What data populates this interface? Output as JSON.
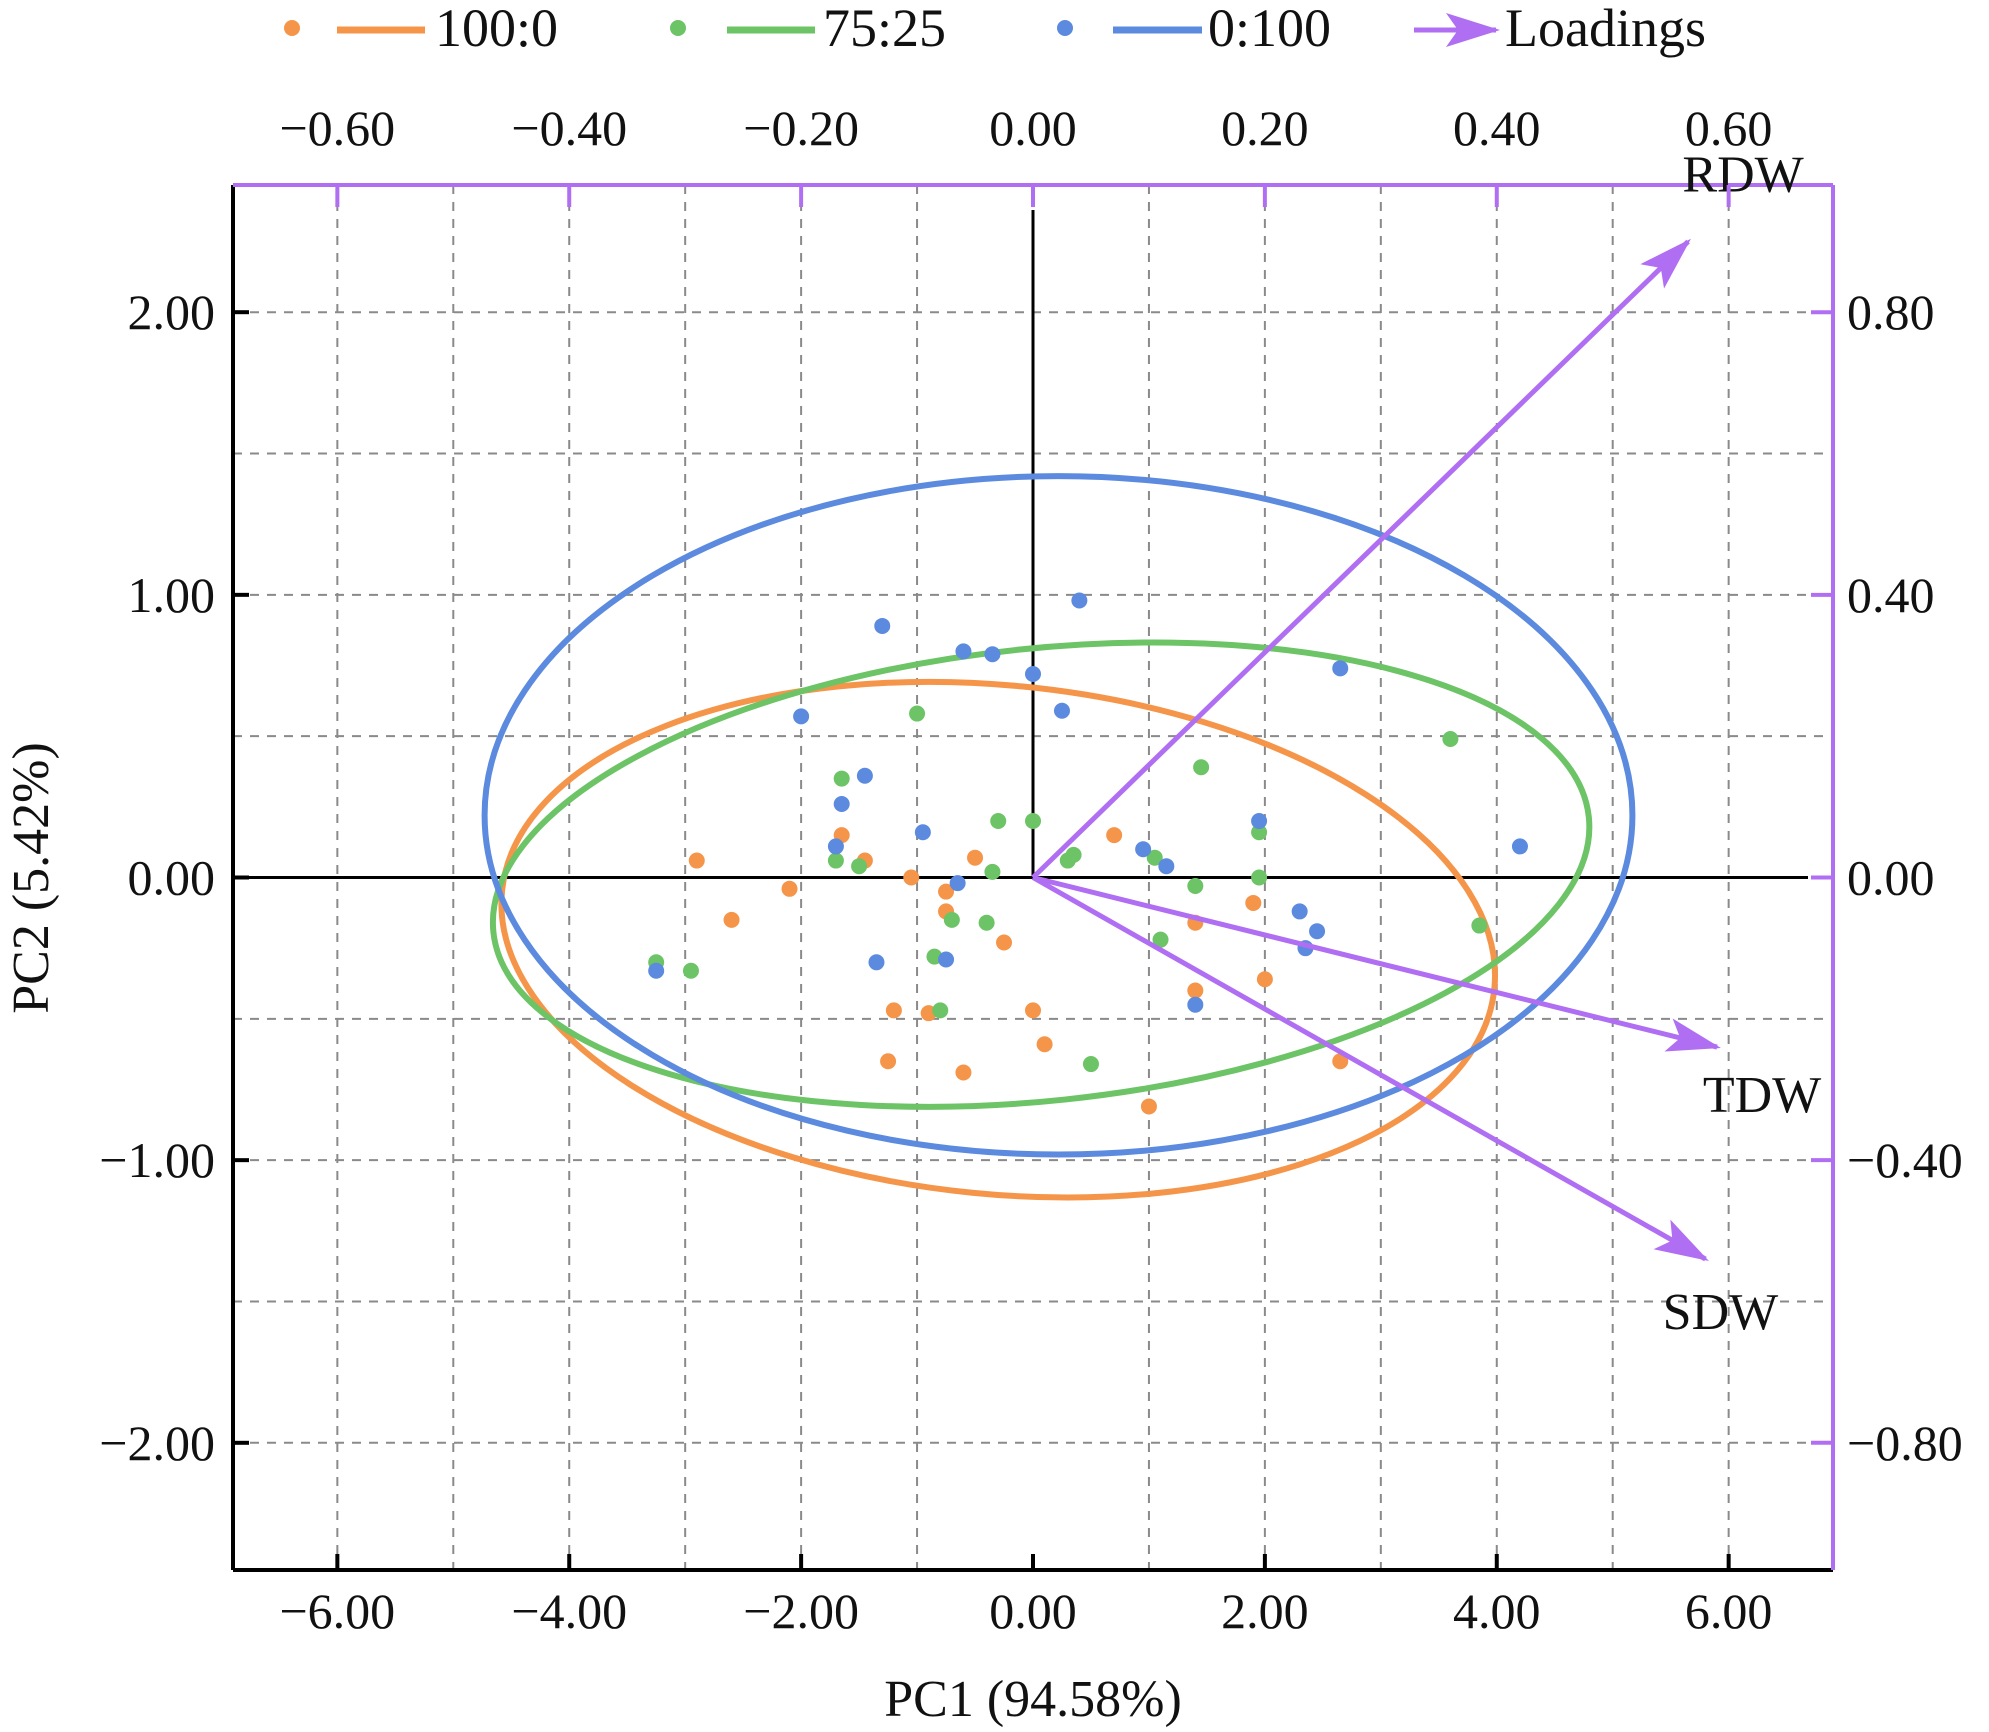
{
  "chart_data": {
    "type": "scatter",
    "title": "",
    "xlabel": "PC1 (94.58%)",
    "ylabel": "PC2 (5.42%)",
    "xlim": [
      -6.9,
      6.9
    ],
    "ylim": [
      -2.45,
      2.45
    ],
    "x_ticks": [
      "−6.00",
      "−4.00",
      "−2.00",
      "0.00",
      "2.00",
      "4.00",
      "6.00"
    ],
    "y_ticks": [
      "2.00",
      "1.00",
      "0.00",
      "−1.00",
      "−2.00"
    ],
    "top_axis": {
      "ticks": [
        "−0.60",
        "−0.40",
        "−0.20",
        "0.00",
        "0.20",
        "0.40",
        "0.60"
      ],
      "range": [
        -0.69,
        0.69
      ]
    },
    "right_axis": {
      "ticks": [
        "0.80",
        "0.40",
        "0.00",
        "−0.40",
        "−0.80"
      ],
      "range": [
        -0.98,
        0.98
      ]
    },
    "grid": true,
    "legend_position": "top",
    "legend": {
      "series_a": "100:0",
      "series_b": "75:25",
      "series_c": "0:100",
      "loadings": "Loadings"
    },
    "series": [
      {
        "name": "100:0",
        "color": "#F5954A",
        "points": [
          [
            -2.9,
            0.06
          ],
          [
            -2.6,
            -0.15
          ],
          [
            -2.1,
            -0.04
          ],
          [
            -1.65,
            0.15
          ],
          [
            -1.45,
            0.06
          ],
          [
            -1.05,
            0.0
          ],
          [
            -0.75,
            -0.05
          ],
          [
            -0.75,
            -0.12
          ],
          [
            -0.5,
            0.07
          ],
          [
            -0.25,
            -0.23
          ],
          [
            -1.2,
            -0.47
          ],
          [
            -0.9,
            -0.48
          ],
          [
            -1.25,
            -0.65
          ],
          [
            -0.6,
            -0.69
          ],
          [
            0.0,
            -0.47
          ],
          [
            0.1,
            -0.59
          ],
          [
            0.7,
            0.15
          ],
          [
            1.4,
            -0.16
          ],
          [
            1.4,
            -0.4
          ],
          [
            1.9,
            -0.09
          ],
          [
            2.0,
            -0.36
          ],
          [
            2.65,
            -0.65
          ],
          [
            1.0,
            -0.81
          ]
        ]
      },
      {
        "name": "75:25",
        "color": "#6CC466",
        "points": [
          [
            -3.25,
            -0.3
          ],
          [
            -2.95,
            -0.33
          ],
          [
            -1.7,
            0.06
          ],
          [
            -1.65,
            0.35
          ],
          [
            -1.5,
            0.04
          ],
          [
            -1.0,
            0.58
          ],
          [
            -0.85,
            -0.28
          ],
          [
            -0.8,
            -0.47
          ],
          [
            -0.7,
            -0.15
          ],
          [
            -0.4,
            -0.16
          ],
          [
            -0.35,
            0.02
          ],
          [
            -0.3,
            0.2
          ],
          [
            0.0,
            0.2
          ],
          [
            0.3,
            0.06
          ],
          [
            0.35,
            0.08
          ],
          [
            0.5,
            -0.66
          ],
          [
            1.05,
            0.07
          ],
          [
            1.1,
            -0.22
          ],
          [
            1.4,
            -0.03
          ],
          [
            1.45,
            0.39
          ],
          [
            1.95,
            0.16
          ],
          [
            1.95,
            0.0
          ],
          [
            3.6,
            0.49
          ],
          [
            3.85,
            -0.17
          ]
        ]
      },
      {
        "name": "0:100",
        "color": "#5B8ADE",
        "points": [
          [
            -3.25,
            -0.33
          ],
          [
            -2.0,
            0.57
          ],
          [
            -1.7,
            0.11
          ],
          [
            -1.65,
            0.26
          ],
          [
            -1.45,
            0.36
          ],
          [
            -1.35,
            -0.3
          ],
          [
            -1.3,
            0.89
          ],
          [
            -0.95,
            0.16
          ],
          [
            -0.75,
            -0.29
          ],
          [
            -0.65,
            -0.02
          ],
          [
            -0.6,
            0.8
          ],
          [
            -0.35,
            0.79
          ],
          [
            0.0,
            0.72
          ],
          [
            0.25,
            0.59
          ],
          [
            0.4,
            0.98
          ],
          [
            0.95,
            0.1
          ],
          [
            1.15,
            0.04
          ],
          [
            1.4,
            -0.45
          ],
          [
            1.95,
            0.2
          ],
          [
            2.3,
            -0.12
          ],
          [
            2.35,
            -0.25
          ],
          [
            2.45,
            -0.19
          ],
          [
            2.65,
            0.74
          ],
          [
            4.2,
            0.11
          ]
        ]
      }
    ],
    "ellipses": [
      {
        "name": "100:0",
        "color": "#F5954A",
        "cx": -0.3,
        "cy": -0.22,
        "rx": 4.3,
        "ry": 0.9,
        "angle_deg": -5.6
      },
      {
        "name": "75:25",
        "color": "#6CC466",
        "cx": 0.07,
        "cy": 0.01,
        "rx": 4.75,
        "ry": 0.8,
        "angle_deg": 6.0
      },
      {
        "name": "0:100",
        "color": "#5B8ADE",
        "cx": 0.22,
        "cy": 0.22,
        "rx": 4.95,
        "ry": 1.2,
        "angle_deg": 0.0
      }
    ],
    "loadings": {
      "color": "#B06EF2",
      "vectors": [
        {
          "label": "RDW",
          "x": 0.565,
          "y": 0.9
        },
        {
          "label": "TDW",
          "x": 0.59,
          "y": -0.24
        },
        {
          "label": "SDW",
          "x": 0.58,
          "y": -0.54
        }
      ]
    }
  }
}
